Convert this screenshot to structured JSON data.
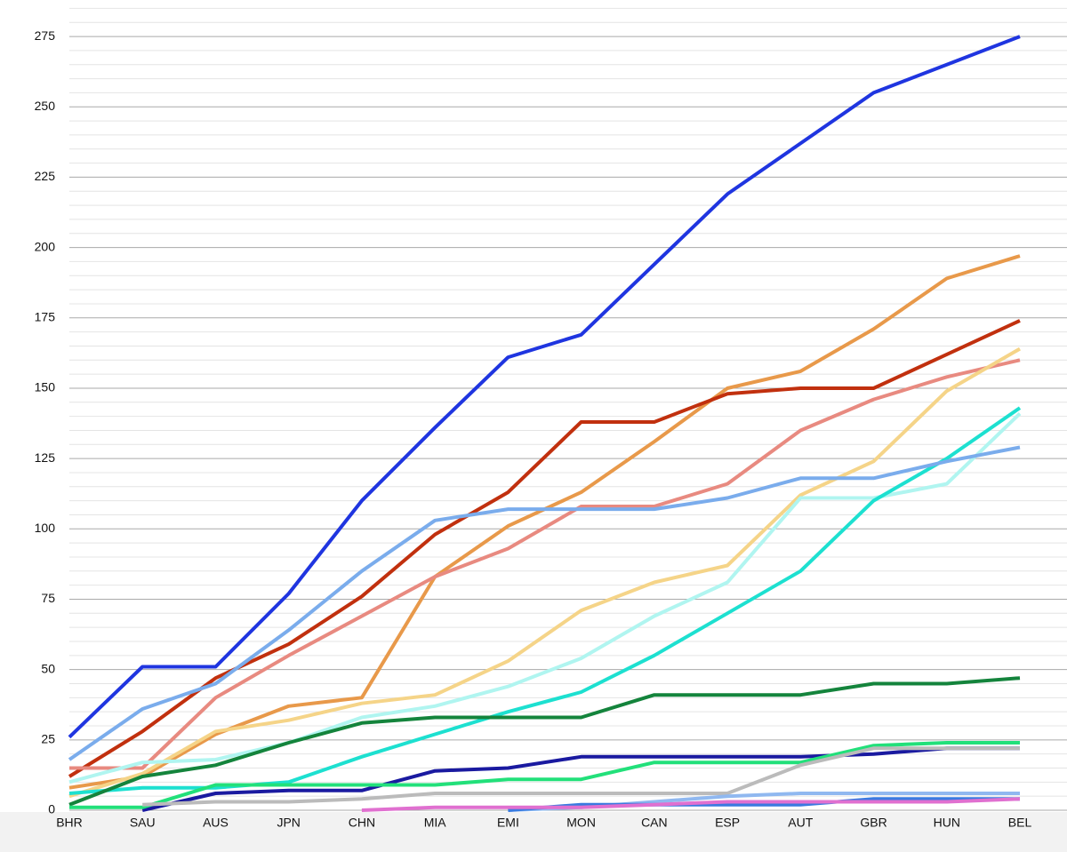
{
  "chart_data": {
    "type": "line",
    "categories": [
      "BHR",
      "SAU",
      "AUS",
      "JPN",
      "CHN",
      "MIA",
      "EMI",
      "MON",
      "CAN",
      "ESP",
      "AUT",
      "GBR",
      "HUN",
      "BEL"
    ],
    "ylim": [
      0,
      285
    ],
    "yticks": [
      0,
      25,
      50,
      75,
      100,
      125,
      150,
      175,
      200,
      225,
      250,
      275
    ],
    "minor_yticks": [
      5,
      10,
      15,
      20,
      30,
      35,
      40,
      45,
      55,
      60,
      65,
      70,
      80,
      85,
      90,
      95,
      105,
      110,
      115,
      120,
      130,
      135,
      140,
      145,
      155,
      160,
      165,
      170,
      180,
      185,
      190,
      195,
      205,
      210,
      215,
      220,
      230,
      235,
      240,
      245,
      255,
      260,
      265,
      270,
      280,
      285
    ],
    "grid": true,
    "series": [
      {
        "color": "#1f35e0",
        "values": [
          26,
          51,
          51,
          77,
          110,
          136,
          161,
          169,
          194,
          219,
          237,
          255,
          265,
          275
        ]
      },
      {
        "color": "#e8994a",
        "values": [
          8,
          12,
          27,
          37,
          40,
          83,
          101,
          113,
          131,
          150,
          156,
          171,
          189,
          197
        ]
      },
      {
        "color": "#c1300e",
        "values": [
          12,
          28,
          47,
          59,
          76,
          98,
          113,
          138,
          138,
          148,
          150,
          150,
          162,
          174
        ]
      },
      {
        "color": "#e88a80",
        "values": [
          15,
          15,
          40,
          55,
          69,
          83,
          93,
          108,
          108,
          116,
          135,
          146,
          154,
          160
        ]
      },
      {
        "color": "#f5d488",
        "values": [
          5,
          13,
          28,
          32,
          38,
          41,
          53,
          71,
          81,
          87,
          112,
          124,
          149,
          164
        ]
      },
      {
        "color": "#b0f5f0",
        "values": [
          10,
          17,
          18,
          24,
          33,
          37,
          44,
          54,
          69,
          81,
          111,
          111,
          116,
          141
        ]
      },
      {
        "color": "#1de0d0",
        "values": [
          6,
          8,
          8,
          10,
          19,
          27,
          35,
          42,
          55,
          70,
          85,
          110,
          125,
          143
        ]
      },
      {
        "color": "#7aacec",
        "values": [
          18,
          36,
          45,
          64,
          85,
          103,
          107,
          107,
          107,
          111,
          118,
          118,
          124,
          129
        ]
      },
      {
        "color": "#14843c",
        "values": [
          2,
          12,
          16,
          24,
          31,
          33,
          33,
          33,
          41,
          41,
          41,
          45,
          45,
          47
        ]
      },
      {
        "color": "#1a1aa0",
        "values": [
          null,
          0,
          6,
          7,
          7,
          14,
          15,
          19,
          19,
          19,
          19,
          20,
          22,
          22
        ]
      },
      {
        "color": "#22e07a",
        "values": [
          1,
          1,
          9,
          9,
          9,
          9,
          11,
          11,
          17,
          17,
          17,
          23,
          24,
          24
        ]
      },
      {
        "color": "#bbbbbb",
        "values": [
          null,
          2,
          3,
          3,
          4,
          6,
          6,
          6,
          6,
          6,
          16,
          22,
          22,
          22
        ]
      },
      {
        "color": "#90b8f0",
        "values": [
          null,
          null,
          null,
          null,
          null,
          null,
          0,
          1,
          3,
          5,
          6,
          6,
          6,
          6
        ]
      },
      {
        "color": "#3a7ae0",
        "values": [
          null,
          null,
          null,
          null,
          null,
          null,
          0,
          2,
          2,
          2,
          2,
          4,
          4,
          4
        ]
      },
      {
        "color": "#e070d0",
        "values": [
          null,
          null,
          null,
          null,
          0,
          1,
          1,
          1,
          2,
          3,
          3,
          3,
          3,
          4
        ]
      }
    ]
  }
}
